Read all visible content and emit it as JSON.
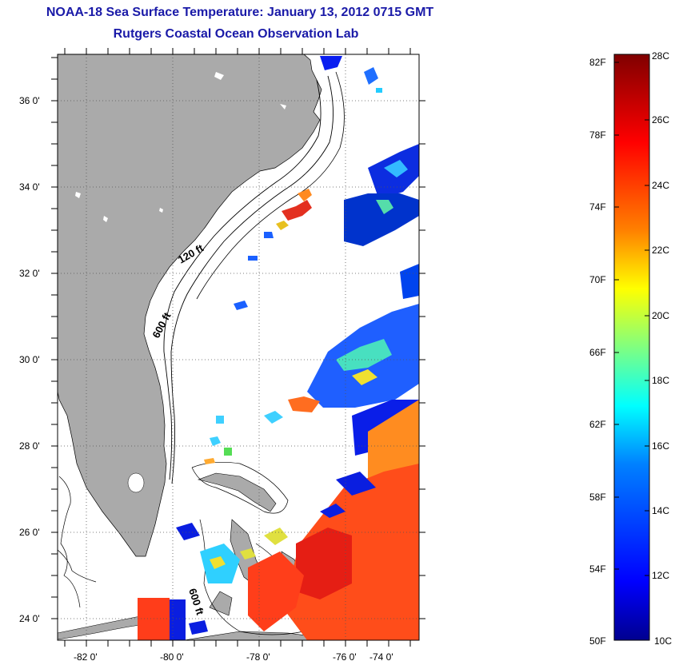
{
  "title_line1": "NOAA-18 Sea Surface Temperature:  January 13, 2012 0715 GMT",
  "title_line2": "Rutgers Coastal Ocean Observation Lab",
  "map": {
    "lat_labels": [
      "36 0'",
      "34 0'",
      "32 0'",
      "30 0'",
      "28 0'",
      "26 0'",
      "24 0'"
    ],
    "lon_labels": [
      "-82 0'",
      "-80 0'",
      "-78 0'",
      "-76 0'",
      "-74 0'"
    ],
    "contour_labels": [
      "120 ft",
      "600 ft",
      "600 ft"
    ],
    "colors": {
      "land": "#aaaaaa",
      "ocean_nodata": "#ffffff"
    }
  },
  "colorbar": {
    "f_labels": [
      "82F",
      "78F",
      "74F",
      "70F",
      "66F",
      "62F",
      "58F",
      "54F",
      "50F"
    ],
    "c_labels": [
      "28C",
      "26C",
      "24C",
      "22C",
      "20C",
      "18C",
      "16C",
      "14C",
      "12C",
      "10C"
    ],
    "gradient_stops": [
      "#00008f",
      "#0000ff",
      "#0080ff",
      "#00ffff",
      "#80ff80",
      "#ffff00",
      "#ff8000",
      "#ff0000",
      "#800000"
    ]
  }
}
